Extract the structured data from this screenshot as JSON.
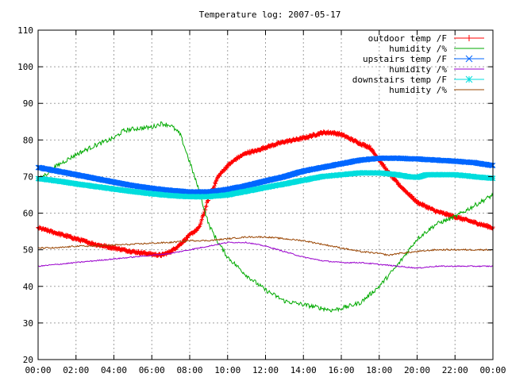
{
  "chart_data": {
    "type": "line",
    "title": "Temperature log: 2007-05-17",
    "xlabel": "",
    "ylabel": "",
    "x_ticks": [
      "00:00",
      "02:00",
      "04:00",
      "06:00",
      "08:00",
      "10:00",
      "12:00",
      "14:00",
      "16:00",
      "18:00",
      "20:00",
      "22:00",
      "00:00"
    ],
    "y_ticks": [
      "20",
      "30",
      "40",
      "50",
      "60",
      "70",
      "80",
      "90",
      "100",
      "110"
    ],
    "xlim": [
      0,
      24
    ],
    "ylim": [
      20,
      110
    ],
    "grid": true,
    "legend_position": "top-right",
    "series": [
      {
        "name": "outdoor temp /F",
        "color": "#ff0000",
        "marker": "plus",
        "x": [
          0,
          1,
          2,
          3,
          4,
          5,
          6,
          6.5,
          7,
          7.5,
          8,
          8.5,
          9,
          9.5,
          10,
          10.5,
          11,
          11.5,
          12,
          13,
          14,
          15,
          15.5,
          16,
          17,
          17.5,
          18,
          18.5,
          19,
          20,
          21,
          22,
          23,
          24
        ],
        "y": [
          56,
          54.5,
          53,
          51.5,
          50.5,
          49.5,
          48.8,
          48.5,
          49.5,
          51.5,
          54,
          56,
          64,
          70,
          73,
          75,
          76.5,
          77,
          78,
          79.5,
          80.5,
          82,
          82,
          81.5,
          79,
          78,
          74.5,
          71,
          68,
          63,
          60.5,
          59,
          57.5,
          56
        ]
      },
      {
        "name": "humidity /%",
        "color": "#00aa00",
        "marker": "none",
        "x": [
          0,
          1,
          2,
          3,
          4,
          4.5,
          5,
          6,
          6.5,
          7,
          7.5,
          8,
          8.5,
          9,
          9.5,
          10,
          11,
          12,
          13,
          14,
          15,
          15.5,
          16,
          17,
          18,
          19,
          20,
          21,
          22,
          23,
          24
        ],
        "y": [
          69,
          73,
          76,
          78.5,
          80.5,
          82.5,
          83,
          83.5,
          84.5,
          84,
          81.5,
          74,
          66,
          57,
          52,
          48,
          43,
          39,
          36,
          35,
          34,
          33.5,
          34,
          35.5,
          40,
          46,
          53,
          57,
          59,
          62,
          65
        ]
      },
      {
        "name": "upstairs temp /F",
        "color": "#0066ff",
        "marker": "x",
        "x": [
          0,
          1,
          2,
          3,
          4,
          5,
          6,
          7,
          8,
          9,
          10,
          11,
          12,
          13,
          14,
          15,
          16,
          17,
          18,
          19,
          20,
          21,
          22,
          23,
          24
        ],
        "y": [
          72.5,
          71.5,
          70.5,
          69.5,
          68.5,
          67.5,
          66.8,
          66.2,
          65.8,
          65.8,
          66.5,
          67.5,
          68.8,
          70,
          71.5,
          72.5,
          73.5,
          74.5,
          75,
          75,
          74.8,
          74.5,
          74.2,
          73.8,
          73
        ]
      },
      {
        "name": "humidity /%",
        "color": "#9900cc",
        "marker": "none",
        "x": [
          0,
          1,
          2,
          3,
          4,
          5,
          6,
          7,
          8,
          9,
          10,
          11,
          12,
          13,
          14,
          15,
          16,
          17,
          18,
          19,
          20,
          21,
          22,
          23,
          24
        ],
        "y": [
          45.5,
          46,
          46.5,
          47,
          47.5,
          48,
          48.5,
          49,
          50,
          51,
          52,
          52,
          51,
          49.5,
          48,
          47,
          46.5,
          46.5,
          46,
          45.5,
          45,
          45.5,
          45.5,
          45.5,
          45.5
        ]
      },
      {
        "name": "downstairs temp /F",
        "color": "#00dddd",
        "marker": "star",
        "x": [
          0,
          1,
          2,
          3,
          4,
          5,
          6,
          7,
          8,
          9,
          10,
          11,
          12,
          13,
          14,
          15,
          16,
          17,
          18,
          19,
          19.5,
          20,
          20.5,
          21,
          22,
          23,
          24
        ],
        "y": [
          69.5,
          68.8,
          68,
          67.3,
          66.6,
          65.9,
          65.3,
          64.8,
          64.5,
          64.5,
          65,
          66,
          67,
          68,
          69,
          70,
          70.5,
          71,
          71,
          70.5,
          70,
          69.8,
          70.5,
          70.5,
          70.5,
          70,
          69.5
        ]
      },
      {
        "name": "humidity /%",
        "color": "#994400",
        "marker": "none",
        "x": [
          0,
          1,
          2,
          3,
          4,
          5,
          6,
          7,
          8,
          9,
          10,
          11,
          12,
          13,
          14,
          15,
          16,
          17,
          18,
          18.5,
          19,
          20,
          21,
          22,
          23,
          24
        ],
        "y": [
          50.5,
          50.5,
          51,
          51,
          51.3,
          51.5,
          51.8,
          52,
          52.5,
          52.5,
          53,
          53.5,
          53.5,
          53,
          52.5,
          51.5,
          50.5,
          49.5,
          49,
          48.5,
          49,
          49.5,
          50,
          50,
          50,
          50
        ]
      }
    ]
  }
}
